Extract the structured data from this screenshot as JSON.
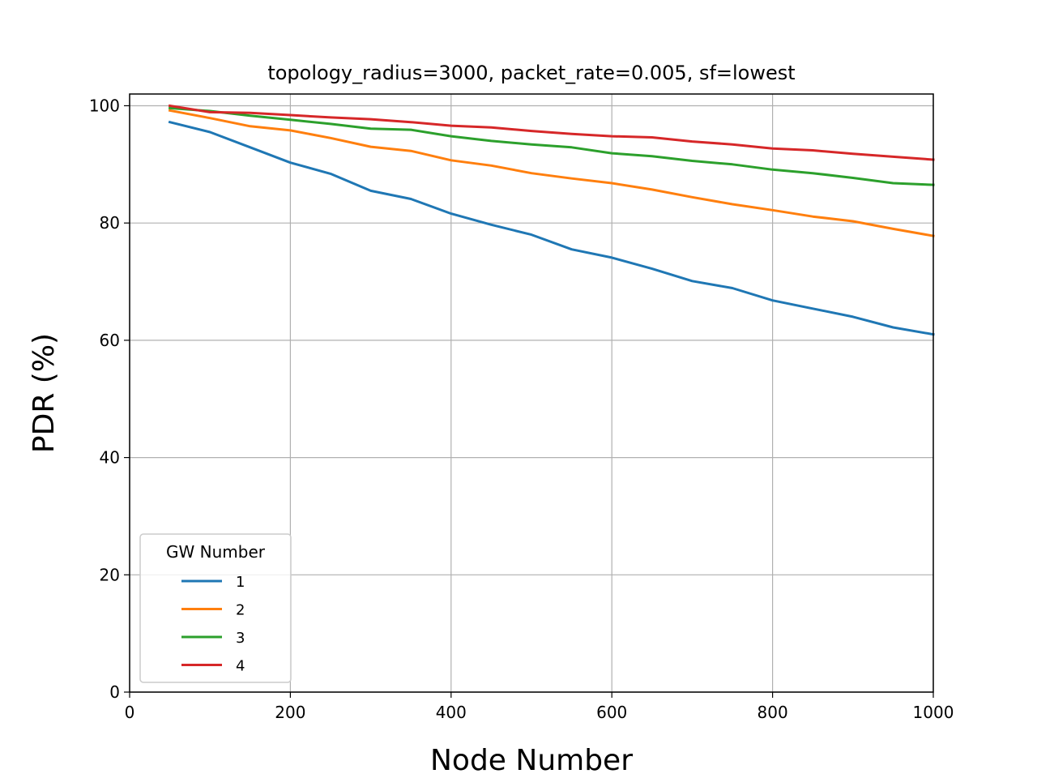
{
  "chart_data": {
    "type": "line",
    "title": "topology_radius=3000, packet_rate=0.005, sf=lowest",
    "xlabel": "Node Number",
    "ylabel": "PDR (%)",
    "xlim": [
      0,
      1000
    ],
    "ylim": [
      0,
      102
    ],
    "xticks": [
      0,
      200,
      400,
      600,
      800,
      1000
    ],
    "yticks": [
      0,
      20,
      40,
      60,
      80,
      100
    ],
    "grid": true,
    "legend": {
      "title": "GW Number",
      "placement": "lower-left"
    },
    "x": [
      50,
      100,
      150,
      200,
      250,
      300,
      350,
      400,
      450,
      500,
      550,
      600,
      650,
      700,
      750,
      800,
      850,
      900,
      950,
      1000
    ],
    "series": [
      {
        "name": "1",
        "color": "#1f77b4",
        "values": [
          97.2,
          95.5,
          92.9,
          90.3,
          88.4,
          85.5,
          84.1,
          81.6,
          79.7,
          78.0,
          75.5,
          74.1,
          72.2,
          70.1,
          68.9,
          66.8,
          65.4,
          64.0,
          62.2,
          61.0
        ]
      },
      {
        "name": "2",
        "color": "#ff7f0e",
        "values": [
          99.2,
          97.9,
          96.5,
          95.8,
          94.5,
          93.0,
          92.3,
          90.7,
          89.8,
          88.5,
          87.6,
          86.8,
          85.7,
          84.4,
          83.2,
          82.2,
          81.1,
          80.3,
          79.0,
          77.8
        ]
      },
      {
        "name": "3",
        "color": "#2ca02c",
        "values": [
          99.6,
          99.1,
          98.3,
          97.6,
          96.9,
          96.1,
          95.9,
          94.8,
          94.0,
          93.4,
          92.9,
          91.9,
          91.4,
          90.6,
          90.0,
          89.1,
          88.5,
          87.7,
          86.8,
          86.5
        ]
      },
      {
        "name": "4",
        "color": "#d62728",
        "values": [
          100.0,
          98.9,
          98.8,
          98.4,
          98.0,
          97.7,
          97.2,
          96.6,
          96.3,
          95.7,
          95.2,
          94.8,
          94.6,
          93.9,
          93.4,
          92.7,
          92.4,
          91.8,
          91.3,
          90.8
        ]
      }
    ]
  }
}
